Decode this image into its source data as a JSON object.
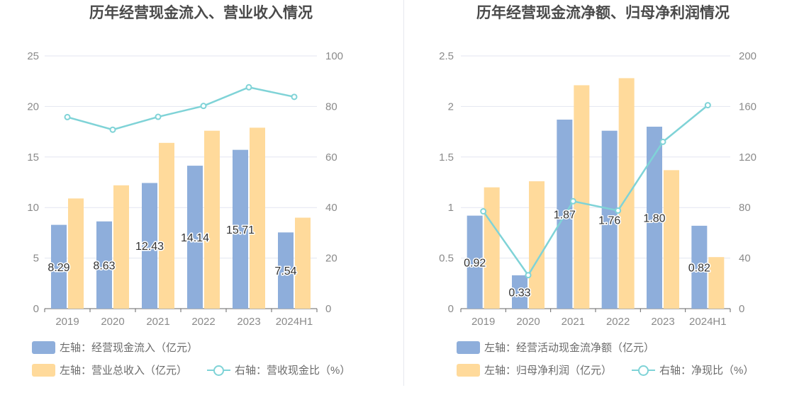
{
  "colors": {
    "bar_blue": "#8eaedb",
    "bar_orange": "#ffda9b",
    "line_teal": "#7fd3d7",
    "grid": "#e3e6f0",
    "axis": "#666666"
  },
  "chart_data": [
    {
      "type": "bar",
      "title": "历年经营现金流入、营业收入情况",
      "categories": [
        "2019",
        "2020",
        "2021",
        "2022",
        "2023",
        "2024H1"
      ],
      "left_axis": {
        "ylim": [
          0,
          25
        ],
        "ticks": [
          "0",
          "5",
          "10",
          "15",
          "20",
          "25"
        ]
      },
      "right_axis": {
        "ylim": [
          0,
          100
        ],
        "ticks": [
          "0",
          "20",
          "40",
          "60",
          "80",
          "100"
        ]
      },
      "series": [
        {
          "name": "左轴：经营现金流入（亿元）",
          "axis": "left",
          "kind": "bar",
          "values": [
            8.29,
            8.63,
            12.43,
            14.14,
            15.71,
            7.54
          ],
          "labels": [
            "8.29",
            "8.63",
            "12.43",
            "14.14",
            "15.71",
            "7.54"
          ]
        },
        {
          "name": "左轴：营业总收入（亿元）",
          "axis": "left",
          "kind": "bar",
          "values": [
            10.9,
            12.2,
            16.4,
            17.6,
            17.9,
            9.0
          ]
        },
        {
          "name": "右轴：营收现金比（%）",
          "axis": "right",
          "kind": "line",
          "values": [
            75.8,
            70.8,
            75.9,
            80.2,
            87.6,
            83.8
          ]
        }
      ],
      "grid": true,
      "legend_position": "bottom-left"
    },
    {
      "type": "bar",
      "title": "历年经营现金流净额、归母净利润情况",
      "categories": [
        "2019",
        "2020",
        "2021",
        "2022",
        "2023",
        "2024H1"
      ],
      "left_axis": {
        "ylim": [
          0,
          2.5
        ],
        "ticks": [
          "0",
          "0.5",
          "1",
          "1.5",
          "2",
          "2.5"
        ]
      },
      "right_axis": {
        "ylim": [
          0,
          200
        ],
        "ticks": [
          "0",
          "40",
          "80",
          "120",
          "160",
          "200"
        ]
      },
      "series": [
        {
          "name": "左轴：经营活动现金流净额（亿元）",
          "axis": "left",
          "kind": "bar",
          "values": [
            0.92,
            0.33,
            1.87,
            1.76,
            1.8,
            0.82
          ],
          "labels": [
            "0.92",
            "0.33",
            "1.87",
            "1.76",
            "1.80",
            "0.82"
          ]
        },
        {
          "name": "左轴：归母净利润（亿元）",
          "axis": "left",
          "kind": "bar",
          "values": [
            1.2,
            1.26,
            2.21,
            2.28,
            1.37,
            0.51
          ]
        },
        {
          "name": "右轴：净现比（%）",
          "axis": "right",
          "kind": "line",
          "values": [
            77,
            26.5,
            85,
            77.6,
            132,
            161
          ]
        }
      ],
      "grid": true,
      "legend_position": "bottom-left"
    }
  ]
}
